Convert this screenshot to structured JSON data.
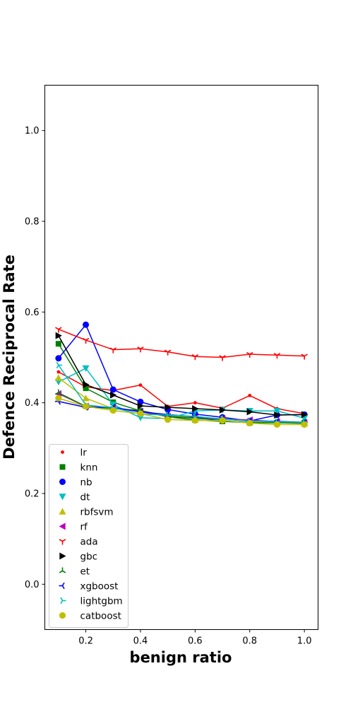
{
  "chart_data": {
    "type": "line",
    "xlabel": "benign ratio",
    "ylabel": "Defence Reciprocal Rate",
    "xlim": [
      0.05,
      1.05
    ],
    "ylim": [
      -0.1,
      1.1
    ],
    "xticks": [
      0.2,
      0.4,
      0.6,
      0.8,
      1.0
    ],
    "xtick_labels": [
      "0.2",
      "0.4",
      "0.6",
      "0.8",
      "1.0"
    ],
    "yticks": [
      0.0,
      0.2,
      0.4,
      0.6,
      0.8,
      1.0
    ],
    "ytick_labels": [
      "0.0",
      "0.2",
      "0.4",
      "0.6",
      "0.8",
      "1.0"
    ],
    "grid": false,
    "legend_position": "lower-left",
    "x": [
      0.1,
      0.2,
      0.3,
      0.4,
      0.5,
      0.6,
      0.7,
      0.8,
      0.9,
      1.0
    ],
    "series": [
      {
        "name": "lr",
        "color": "#ff0000",
        "marker": "point",
        "values": [
          0.468,
          0.435,
          0.427,
          0.439,
          0.392,
          0.4,
          0.388,
          0.416,
          0.387,
          0.376
        ]
      },
      {
        "name": "knn",
        "color": "#008000",
        "marker": "square",
        "values": [
          0.53,
          0.432,
          0.401,
          0.382,
          0.369,
          0.362,
          0.359,
          0.356,
          0.356,
          0.356
        ]
      },
      {
        "name": "nb",
        "color": "#0000ff",
        "marker": "circle",
        "values": [
          0.498,
          0.572,
          0.429,
          0.402,
          0.385,
          0.375,
          0.368,
          0.36,
          0.373,
          0.374
        ]
      },
      {
        "name": "dt",
        "color": "#00bfbf",
        "marker": "triangle-down",
        "values": [
          0.446,
          0.476,
          0.396,
          0.367,
          0.365,
          0.382,
          0.384,
          0.382,
          0.382,
          0.366
        ]
      },
      {
        "name": "rbfsvm",
        "color": "#bfbf00",
        "marker": "triangle-up",
        "values": [
          0.455,
          0.41,
          0.387,
          0.382,
          0.372,
          0.368,
          0.365,
          0.359,
          0.356,
          0.354
        ]
      },
      {
        "name": "rf",
        "color": "#bf00bf",
        "marker": "triangle-left",
        "values": [
          0.42,
          0.392,
          0.389,
          0.38,
          0.37,
          0.366,
          0.364,
          0.362,
          0.358,
          0.356
        ]
      },
      {
        "name": "ada",
        "color": "#ff0000",
        "marker": "tri-down",
        "values": [
          0.562,
          0.538,
          0.517,
          0.519,
          0.512,
          0.502,
          0.5,
          0.507,
          0.505,
          0.503
        ]
      },
      {
        "name": "gbc",
        "color": "#000000",
        "marker": "triangle-right",
        "values": [
          0.548,
          0.44,
          0.417,
          0.393,
          0.39,
          0.387,
          0.384,
          0.38,
          0.373,
          0.374
        ]
      },
      {
        "name": "et",
        "color": "#008000",
        "marker": "tri-up",
        "values": [
          0.422,
          0.392,
          0.387,
          0.383,
          0.37,
          0.366,
          0.361,
          0.356,
          0.356,
          0.355
        ]
      },
      {
        "name": "xgboost",
        "color": "#0000ff",
        "marker": "tri-left",
        "values": [
          0.403,
          0.39,
          0.39,
          0.38,
          0.374,
          0.369,
          0.364,
          0.36,
          0.359,
          0.357
        ]
      },
      {
        "name": "lightgbm",
        "color": "#00bfbf",
        "marker": "tri-right",
        "values": [
          0.483,
          0.395,
          0.389,
          0.375,
          0.373,
          0.37,
          0.364,
          0.36,
          0.358,
          0.357
        ]
      },
      {
        "name": "catboost",
        "color": "#bfbf00",
        "marker": "octagon",
        "values": [
          0.41,
          0.392,
          0.383,
          0.376,
          0.363,
          0.361,
          0.361,
          0.355,
          0.352,
          0.352
        ]
      }
    ]
  }
}
